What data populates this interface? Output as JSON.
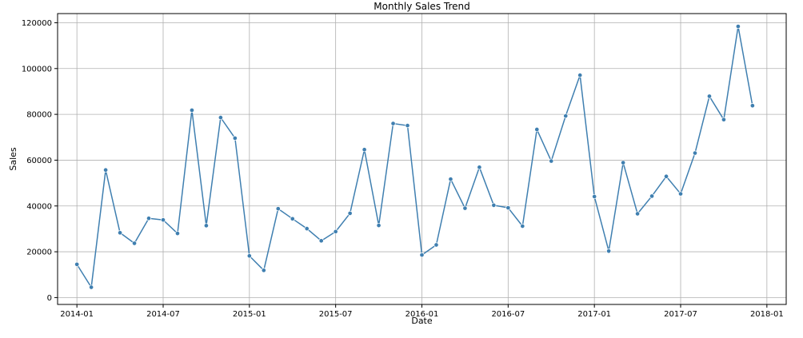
{
  "chart_data": {
    "type": "line",
    "title": "Monthly Sales Trend",
    "xlabel": "Date",
    "ylabel": "Sales",
    "x_ticks": [
      "2014-01",
      "2014-07",
      "2015-01",
      "2015-07",
      "2016-01",
      "2016-07",
      "2017-01",
      "2017-07",
      "2018-01"
    ],
    "y_ticks": [
      "0",
      "20000",
      "40000",
      "60000",
      "80000",
      "100000",
      "120000"
    ],
    "ylim": [
      -3000,
      124000
    ],
    "grid": true,
    "marker": "circle",
    "colors": {
      "line": "#3f7fb0",
      "marker": "#3f7fb0",
      "grid": "#b0b0b0",
      "axis": "#000000"
    },
    "series": [
      {
        "name": "Sales",
        "x": [
          "2014-01",
          "2014-02",
          "2014-03",
          "2014-04",
          "2014-05",
          "2014-06",
          "2014-07",
          "2014-08",
          "2014-09",
          "2014-10",
          "2014-11",
          "2014-12",
          "2015-01",
          "2015-02",
          "2015-03",
          "2015-04",
          "2015-05",
          "2015-06",
          "2015-07",
          "2015-08",
          "2015-09",
          "2015-10",
          "2015-11",
          "2015-12",
          "2016-01",
          "2016-02",
          "2016-03",
          "2016-04",
          "2016-05",
          "2016-06",
          "2016-07",
          "2016-08",
          "2016-09",
          "2016-10",
          "2016-11",
          "2016-12",
          "2017-01",
          "2017-02",
          "2017-03",
          "2017-04",
          "2017-05",
          "2017-06",
          "2017-07",
          "2017-08",
          "2017-09",
          "2017-10",
          "2017-11",
          "2017-12"
        ],
        "values": [
          14500,
          4500,
          55700,
          28300,
          23700,
          34600,
          33900,
          28000,
          81800,
          31400,
          78600,
          69600,
          18200,
          11900,
          38800,
          34400,
          30100,
          24800,
          28800,
          36800,
          64600,
          31500,
          76000,
          75100,
          18600,
          23000,
          51700,
          39000,
          56900,
          40300,
          39200,
          31200,
          73400,
          59600,
          79300,
          97100,
          44100,
          20300,
          58900,
          36600,
          44300,
          52900,
          45300,
          63100,
          87900,
          77700,
          118400,
          83800
        ]
      }
    ]
  }
}
